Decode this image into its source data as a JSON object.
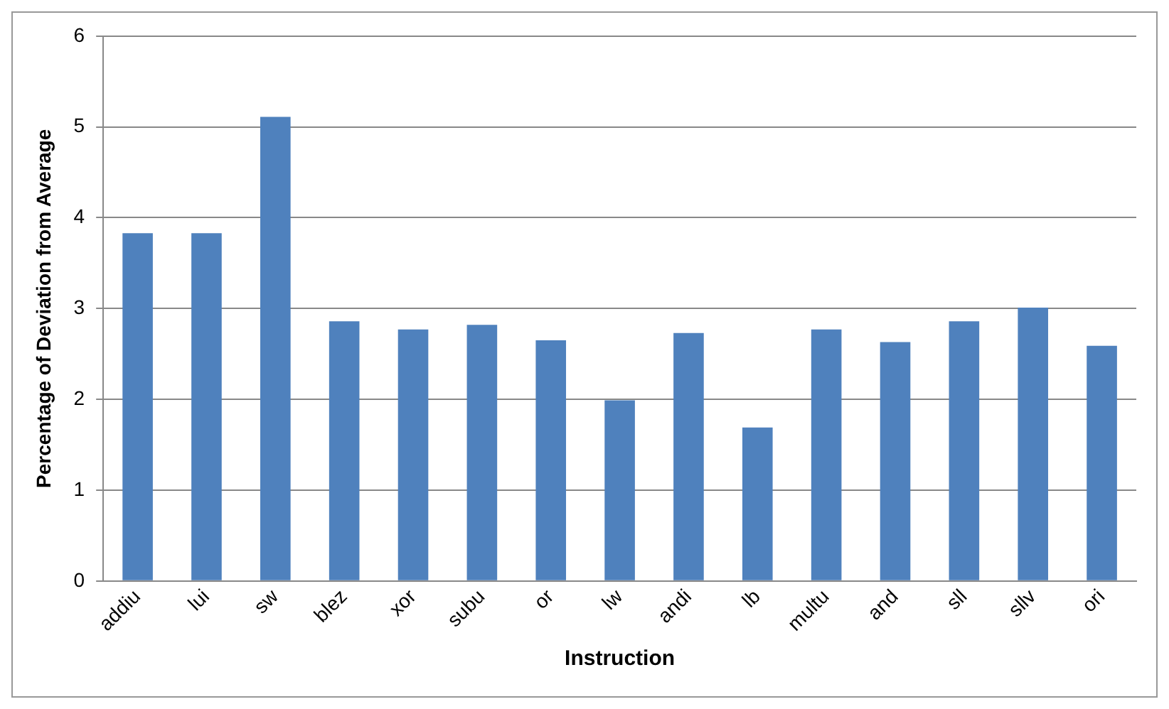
{
  "chart_data": {
    "type": "bar",
    "xlabel": "Instruction",
    "ylabel": "Percentage of Deviation from Average",
    "categories": [
      "addiu",
      "lui",
      "sw",
      "blez",
      "xor",
      "subu",
      "or",
      "lw",
      "andi",
      "lb",
      "multu",
      "and",
      "sll",
      "sllv",
      "ori"
    ],
    "values": [
      3.83,
      3.83,
      5.11,
      2.86,
      2.77,
      2.82,
      2.65,
      1.99,
      2.73,
      1.69,
      2.77,
      2.63,
      2.86,
      3.01,
      2.59
    ],
    "color": "#4f81bd",
    "ylim": [
      0,
      6
    ],
    "yticks": [
      0,
      1,
      2,
      3,
      4,
      5,
      6
    ],
    "grid": "y",
    "legend": false
  }
}
